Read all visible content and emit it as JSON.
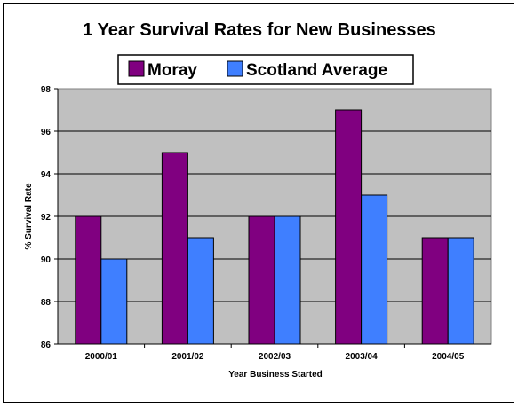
{
  "chart_data": {
    "type": "bar",
    "title": "1 Year Survival Rates for New Businesses",
    "xlabel": "Year Business Started",
    "ylabel": "% Survival Rate",
    "categories": [
      "2000/01",
      "2001/02",
      "2002/03",
      "2003/04",
      "2004/05"
    ],
    "series": [
      {
        "name": "Moray",
        "values": [
          92,
          95,
          92,
          97,
          91
        ],
        "color": "#800080"
      },
      {
        "name": "Scotland Average",
        "values": [
          90,
          91,
          92,
          93,
          91
        ],
        "color": "#3f7fff"
      }
    ],
    "ylim": [
      86,
      98
    ],
    "yticks": [
      86,
      88,
      90,
      92,
      94,
      96,
      98
    ],
    "grid": true,
    "legend_position": "top",
    "plot_background": "#c0c0c0"
  }
}
